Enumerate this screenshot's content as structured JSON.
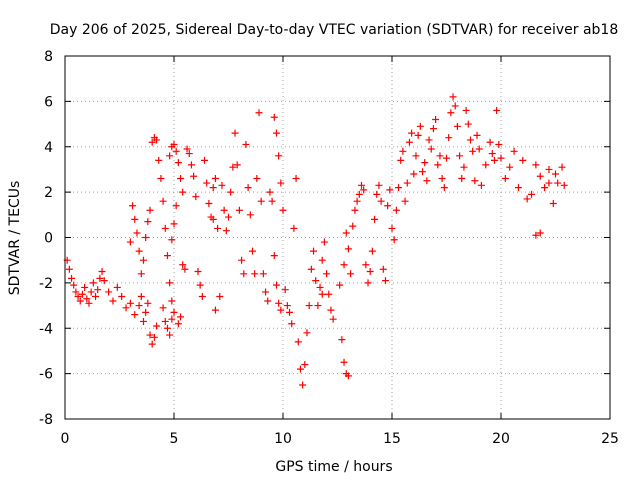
{
  "chart_data": {
    "type": "scatter",
    "title": "Day 206 of 2025, Sidereal Day-to-day VTEC variation (SDTVAR) for receiver ab18",
    "xlabel": "GPS time / hours",
    "ylabel": "SDTVAR / TECUs",
    "xlim": [
      0,
      25
    ],
    "ylim": [
      -8,
      8
    ],
    "xticks": [
      "0",
      "5",
      "10",
      "15",
      "20",
      "25"
    ],
    "yticks": [
      "-8",
      "-6",
      "-4",
      "-2",
      "0",
      "2",
      "4",
      "6",
      "8"
    ],
    "grid": true,
    "marker": "+",
    "color": "#ff0000",
    "series": [
      {
        "name": "SDTVAR",
        "points": [
          [
            0.1,
            -1.0
          ],
          [
            0.2,
            -1.4
          ],
          [
            0.3,
            -1.8
          ],
          [
            0.4,
            -2.1
          ],
          [
            0.5,
            -2.4
          ],
          [
            0.6,
            -2.6
          ],
          [
            0.7,
            -2.8
          ],
          [
            0.8,
            -2.5
          ],
          [
            0.9,
            -2.2
          ],
          [
            1.0,
            -2.7
          ],
          [
            1.1,
            -2.9
          ],
          [
            1.2,
            -2.4
          ],
          [
            1.3,
            -2.0
          ],
          [
            1.4,
            -2.6
          ],
          [
            1.5,
            -2.3
          ],
          [
            1.6,
            -1.8
          ],
          [
            1.7,
            -1.5
          ],
          [
            1.8,
            -1.9
          ],
          [
            2.0,
            -2.4
          ],
          [
            2.2,
            -2.8
          ],
          [
            2.4,
            -2.2
          ],
          [
            2.6,
            -2.6
          ],
          [
            2.8,
            -3.1
          ],
          [
            3.0,
            -2.9
          ],
          [
            3.2,
            -3.4
          ],
          [
            3.4,
            -3.0
          ],
          [
            3.5,
            -2.6
          ],
          [
            3.6,
            -3.7
          ],
          [
            3.7,
            -3.3
          ],
          [
            3.8,
            -2.9
          ],
          [
            3.6,
            -1.0
          ],
          [
            3.7,
            0.0
          ],
          [
            3.8,
            0.7
          ],
          [
            3.9,
            1.2
          ],
          [
            3.5,
            -1.6
          ],
          [
            3.4,
            -0.6
          ],
          [
            3.3,
            0.2
          ],
          [
            3.2,
            0.8
          ],
          [
            3.1,
            1.4
          ],
          [
            3.0,
            -0.2
          ],
          [
            3.9,
            -4.3
          ],
          [
            4.0,
            -4.7
          ],
          [
            4.1,
            -4.4
          ],
          [
            4.2,
            -3.9
          ],
          [
            4.0,
            4.2
          ],
          [
            4.1,
            4.4
          ],
          [
            4.2,
            4.3
          ],
          [
            4.3,
            3.4
          ],
          [
            4.4,
            2.6
          ],
          [
            4.5,
            1.6
          ],
          [
            4.6,
            0.4
          ],
          [
            4.7,
            -0.8
          ],
          [
            4.8,
            -2.0
          ],
          [
            4.9,
            -2.8
          ],
          [
            4.5,
            -3.1
          ],
          [
            4.6,
            -3.7
          ],
          [
            4.7,
            -4.0
          ],
          [
            4.8,
            -4.3
          ],
          [
            4.9,
            -3.6
          ],
          [
            5.0,
            -3.3
          ],
          [
            4.8,
            3.6
          ],
          [
            4.9,
            4.0
          ],
          [
            5.0,
            4.1
          ],
          [
            5.1,
            3.8
          ],
          [
            5.2,
            3.3
          ],
          [
            5.3,
            2.6
          ],
          [
            5.4,
            2.0
          ],
          [
            5.1,
            1.4
          ],
          [
            5.0,
            0.6
          ],
          [
            4.9,
            -0.1
          ],
          [
            5.2,
            -3.8
          ],
          [
            5.3,
            -3.5
          ],
          [
            5.4,
            -1.2
          ],
          [
            5.5,
            -1.4
          ],
          [
            5.6,
            3.9
          ],
          [
            5.7,
            3.7
          ],
          [
            5.8,
            3.2
          ],
          [
            5.9,
            2.7
          ],
          [
            6.0,
            1.8
          ],
          [
            6.1,
            -1.5
          ],
          [
            6.2,
            -2.1
          ],
          [
            6.3,
            -2.6
          ],
          [
            6.4,
            3.4
          ],
          [
            6.5,
            2.4
          ],
          [
            6.6,
            1.5
          ],
          [
            6.7,
            0.9
          ],
          [
            6.8,
            2.2
          ],
          [
            6.9,
            2.6
          ],
          [
            7.0,
            0.4
          ],
          [
            7.1,
            -2.6
          ],
          [
            6.9,
            -3.2
          ],
          [
            6.8,
            0.8
          ],
          [
            7.2,
            2.3
          ],
          [
            7.3,
            1.2
          ],
          [
            7.4,
            0.3
          ],
          [
            7.5,
            0.9
          ],
          [
            7.6,
            2.0
          ],
          [
            7.7,
            3.1
          ],
          [
            7.8,
            4.6
          ],
          [
            7.9,
            3.2
          ],
          [
            8.0,
            1.2
          ],
          [
            8.1,
            -1.0
          ],
          [
            8.2,
            -1.6
          ],
          [
            8.3,
            4.1
          ],
          [
            8.4,
            2.2
          ],
          [
            8.5,
            1.0
          ],
          [
            8.6,
            -0.6
          ],
          [
            8.7,
            -1.6
          ],
          [
            8.8,
            2.6
          ],
          [
            8.9,
            5.5
          ],
          [
            9.0,
            1.6
          ],
          [
            9.1,
            -1.6
          ],
          [
            9.2,
            -2.4
          ],
          [
            9.3,
            -2.8
          ],
          [
            9.4,
            2.0
          ],
          [
            9.5,
            1.6
          ],
          [
            9.6,
            -0.8
          ],
          [
            9.7,
            -2.1
          ],
          [
            9.8,
            -2.9
          ],
          [
            9.9,
            -3.2
          ],
          [
            9.6,
            5.3
          ],
          [
            9.7,
            4.6
          ],
          [
            9.8,
            3.6
          ],
          [
            9.9,
            2.4
          ],
          [
            10.0,
            1.2
          ],
          [
            10.1,
            -2.3
          ],
          [
            10.2,
            -3.0
          ],
          [
            10.3,
            -3.3
          ],
          [
            10.4,
            -3.8
          ],
          [
            10.5,
            0.4
          ],
          [
            10.6,
            2.6
          ],
          [
            10.7,
            -4.6
          ],
          [
            10.8,
            -5.8
          ],
          [
            10.9,
            -6.5
          ],
          [
            11.0,
            -5.6
          ],
          [
            11.1,
            -4.2
          ],
          [
            11.2,
            -3.0
          ],
          [
            11.3,
            -1.4
          ],
          [
            11.4,
            -0.6
          ],
          [
            11.5,
            -1.9
          ],
          [
            11.6,
            -3.0
          ],
          [
            11.7,
            -2.2
          ],
          [
            11.8,
            -1.0
          ],
          [
            11.9,
            -0.2
          ],
          [
            12.0,
            -1.6
          ],
          [
            12.1,
            -2.5
          ],
          [
            12.2,
            -3.2
          ],
          [
            12.3,
            -3.6
          ],
          [
            11.8,
            -2.5
          ],
          [
            12.6,
            -2.1
          ],
          [
            12.7,
            -4.5
          ],
          [
            12.8,
            -5.5
          ],
          [
            12.9,
            -6.0
          ],
          [
            13.0,
            -6.1
          ],
          [
            12.8,
            -1.2
          ],
          [
            12.9,
            0.2
          ],
          [
            13.0,
            -0.5
          ],
          [
            13.1,
            -1.6
          ],
          [
            13.2,
            0.5
          ],
          [
            13.3,
            1.2
          ],
          [
            13.4,
            1.6
          ],
          [
            13.5,
            1.9
          ],
          [
            13.6,
            2.3
          ],
          [
            13.7,
            2.1
          ],
          [
            13.8,
            -1.2
          ],
          [
            13.9,
            -2.0
          ],
          [
            14.0,
            -1.5
          ],
          [
            14.1,
            -0.6
          ],
          [
            14.2,
            0.8
          ],
          [
            14.3,
            1.9
          ],
          [
            14.4,
            2.3
          ],
          [
            14.5,
            1.6
          ],
          [
            14.6,
            -1.4
          ],
          [
            14.7,
            -1.9
          ],
          [
            14.8,
            1.4
          ],
          [
            14.9,
            2.1
          ],
          [
            15.0,
            0.4
          ],
          [
            15.1,
            -0.1
          ],
          [
            15.2,
            1.2
          ],
          [
            15.3,
            2.2
          ],
          [
            15.4,
            3.4
          ],
          [
            15.5,
            3.8
          ],
          [
            15.6,
            1.6
          ],
          [
            15.7,
            2.4
          ],
          [
            15.8,
            4.2
          ],
          [
            15.9,
            4.6
          ],
          [
            16.0,
            2.8
          ],
          [
            16.1,
            3.6
          ],
          [
            16.2,
            4.5
          ],
          [
            16.3,
            4.9
          ],
          [
            16.4,
            2.9
          ],
          [
            16.5,
            3.3
          ],
          [
            16.6,
            2.5
          ],
          [
            16.7,
            4.3
          ],
          [
            16.8,
            3.9
          ],
          [
            16.9,
            4.8
          ],
          [
            17.0,
            5.2
          ],
          [
            17.1,
            3.2
          ],
          [
            17.2,
            3.6
          ],
          [
            17.3,
            2.6
          ],
          [
            17.4,
            2.2
          ],
          [
            17.5,
            3.5
          ],
          [
            17.6,
            4.4
          ],
          [
            17.7,
            5.5
          ],
          [
            17.8,
            6.2
          ],
          [
            17.9,
            5.8
          ],
          [
            18.0,
            4.9
          ],
          [
            18.1,
            3.6
          ],
          [
            18.2,
            2.6
          ],
          [
            18.3,
            3.1
          ],
          [
            18.4,
            5.6
          ],
          [
            18.5,
            5.0
          ],
          [
            18.6,
            4.3
          ],
          [
            18.7,
            3.8
          ],
          [
            18.8,
            2.5
          ],
          [
            18.9,
            4.5
          ],
          [
            19.0,
            3.9
          ],
          [
            19.1,
            2.3
          ],
          [
            19.3,
            3.2
          ],
          [
            19.5,
            4.2
          ],
          [
            19.6,
            3.7
          ],
          [
            19.7,
            3.4
          ],
          [
            19.8,
            5.6
          ],
          [
            19.9,
            4.1
          ],
          [
            20.0,
            3.5
          ],
          [
            20.2,
            2.6
          ],
          [
            20.4,
            3.1
          ],
          [
            20.6,
            3.8
          ],
          [
            20.8,
            2.2
          ],
          [
            21.0,
            3.4
          ],
          [
            21.2,
            1.7
          ],
          [
            21.4,
            1.9
          ],
          [
            21.6,
            0.1
          ],
          [
            21.8,
            0.2
          ],
          [
            21.6,
            3.2
          ],
          [
            21.8,
            2.7
          ],
          [
            22.0,
            2.2
          ],
          [
            22.2,
            3.0
          ],
          [
            22.4,
            1.5
          ],
          [
            22.6,
            2.4
          ],
          [
            22.8,
            3.1
          ],
          [
            22.9,
            2.3
          ],
          [
            22.2,
            2.4
          ],
          [
            22.5,
            2.8
          ]
        ]
      }
    ]
  }
}
